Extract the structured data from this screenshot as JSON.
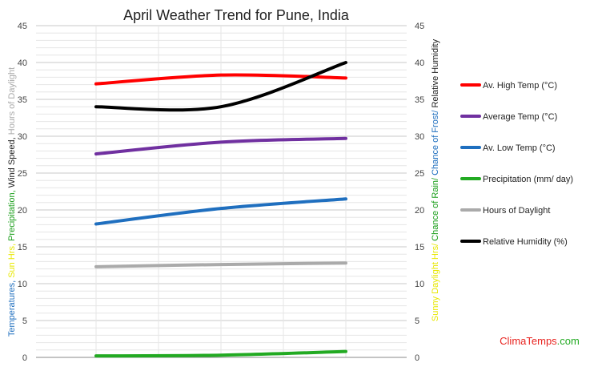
{
  "chart_data": {
    "type": "line",
    "title": "April Weather Trend for Pune, India",
    "x": [
      1,
      2,
      3
    ],
    "ylim": [
      0,
      45
    ],
    "y_ticks": [
      "0",
      "5",
      "10",
      "15",
      "20",
      "25",
      "30",
      "35",
      "40",
      "45"
    ],
    "grid": true,
    "legend_position": "right",
    "y_left_label": [
      {
        "text": "Temperatures, ",
        "color": "#1f6fbf"
      },
      {
        "text": "Sun Hrs, ",
        "color": "#e8e800"
      },
      {
        "text": "Precipitation, ",
        "color": "#1a9e1a"
      },
      {
        "text": "Wind Speed, ",
        "color": "#222222"
      },
      {
        "text": "Hours of Daylight",
        "color": "#aaaaaa"
      }
    ],
    "y_right_label": [
      {
        "text": "Sunny Daylight Hrs/ ",
        "color": "#e8e800"
      },
      {
        "text": "Chance of Rain/ ",
        "color": "#1a9e1a"
      },
      {
        "text": "Chance of Frost/ ",
        "color": "#1f6fbf"
      },
      {
        "text": "Relative Humidity",
        "color": "#222222"
      }
    ],
    "series": [
      {
        "name": "Av. High Temp (°C)",
        "color": "#ff0000",
        "values": [
          37.1,
          38.3,
          37.9
        ]
      },
      {
        "name": "Average Temp (°C)",
        "color": "#7030a0",
        "values": [
          27.6,
          29.2,
          29.7
        ]
      },
      {
        "name": "Av. Low Temp (°C)",
        "color": "#1f6fbf",
        "values": [
          18.1,
          20.2,
          21.5
        ]
      },
      {
        "name": "Precipitation (mm/ day)",
        "color": "#22aa22",
        "values": [
          0.2,
          0.3,
          0.8
        ]
      },
      {
        "name": "Hours of Daylight",
        "color": "#aaaaaa",
        "values": [
          12.3,
          12.6,
          12.8
        ]
      },
      {
        "name": "Relative Humidity (%)",
        "color": "#000000",
        "values": [
          34.0,
          34.0,
          40.0
        ]
      }
    ]
  },
  "brand": {
    "name": "ClimaTemps",
    "suffix": ".com"
  }
}
